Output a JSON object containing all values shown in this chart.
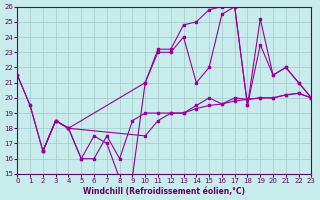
{
  "xlabel": "Windchill (Refroidissement éolien,°C)",
  "ylabel": "",
  "bg_color": "#c8ecec",
  "line_color": "#990099",
  "xlim": [
    0,
    23
  ],
  "ylim": [
    15,
    26
  ],
  "yticks": [
    15,
    16,
    17,
    18,
    19,
    20,
    21,
    22,
    23,
    24,
    25,
    26
  ],
  "xticks": [
    0,
    1,
    2,
    3,
    4,
    5,
    6,
    7,
    8,
    9,
    10,
    11,
    12,
    13,
    14,
    15,
    16,
    17,
    18,
    19,
    20,
    21,
    22,
    23
  ],
  "series": [
    {
      "x": [
        0,
        1,
        2,
        3,
        4,
        5,
        6,
        7,
        8,
        9,
        10,
        11,
        12,
        13,
        14,
        15,
        16,
        17,
        18,
        19,
        20,
        21,
        22,
        23
      ],
      "y": [
        21.5,
        19.5,
        16.5,
        18.5,
        18.0,
        16.0,
        17.5,
        17.0,
        14.7,
        14.8,
        21.0,
        23.2,
        23.2,
        24.8,
        25.0,
        25.8,
        26.0,
        26.0,
        19.5,
        25.2,
        21.5,
        22.0,
        21.0,
        20.0
      ]
    },
    {
      "x": [
        0,
        1,
        2,
        3,
        4,
        5,
        6,
        7,
        8,
        9,
        10,
        11,
        12,
        13,
        14,
        15,
        16,
        17,
        18,
        19,
        20,
        21,
        22,
        23
      ],
      "y": [
        21.5,
        19.5,
        16.5,
        18.5,
        18.0,
        16.0,
        16.0,
        17.5,
        16.0,
        18.5,
        19.0,
        19.0,
        19.0,
        19.0,
        19.3,
        19.5,
        19.6,
        19.8,
        19.9,
        20.0,
        20.0,
        20.2,
        20.3,
        20.0
      ]
    },
    {
      "x": [
        2,
        3,
        4,
        10,
        11,
        12,
        13,
        14,
        15,
        16,
        17,
        18,
        19,
        20,
        21,
        22,
        23
      ],
      "y": [
        16.5,
        18.5,
        18.0,
        21.0,
        23.0,
        23.0,
        24.0,
        21.0,
        22.0,
        25.5,
        26.0,
        19.5,
        23.5,
        21.5,
        22.0,
        21.0,
        20.0
      ]
    },
    {
      "x": [
        2,
        3,
        4,
        10,
        11,
        12,
        13,
        14,
        15,
        16,
        17,
        18,
        19,
        20,
        21,
        22,
        23
      ],
      "y": [
        16.5,
        18.5,
        18.0,
        17.5,
        18.5,
        19.0,
        19.0,
        19.5,
        20.0,
        19.6,
        20.0,
        19.9,
        20.0,
        20.0,
        20.2,
        20.3,
        20.0
      ]
    }
  ]
}
